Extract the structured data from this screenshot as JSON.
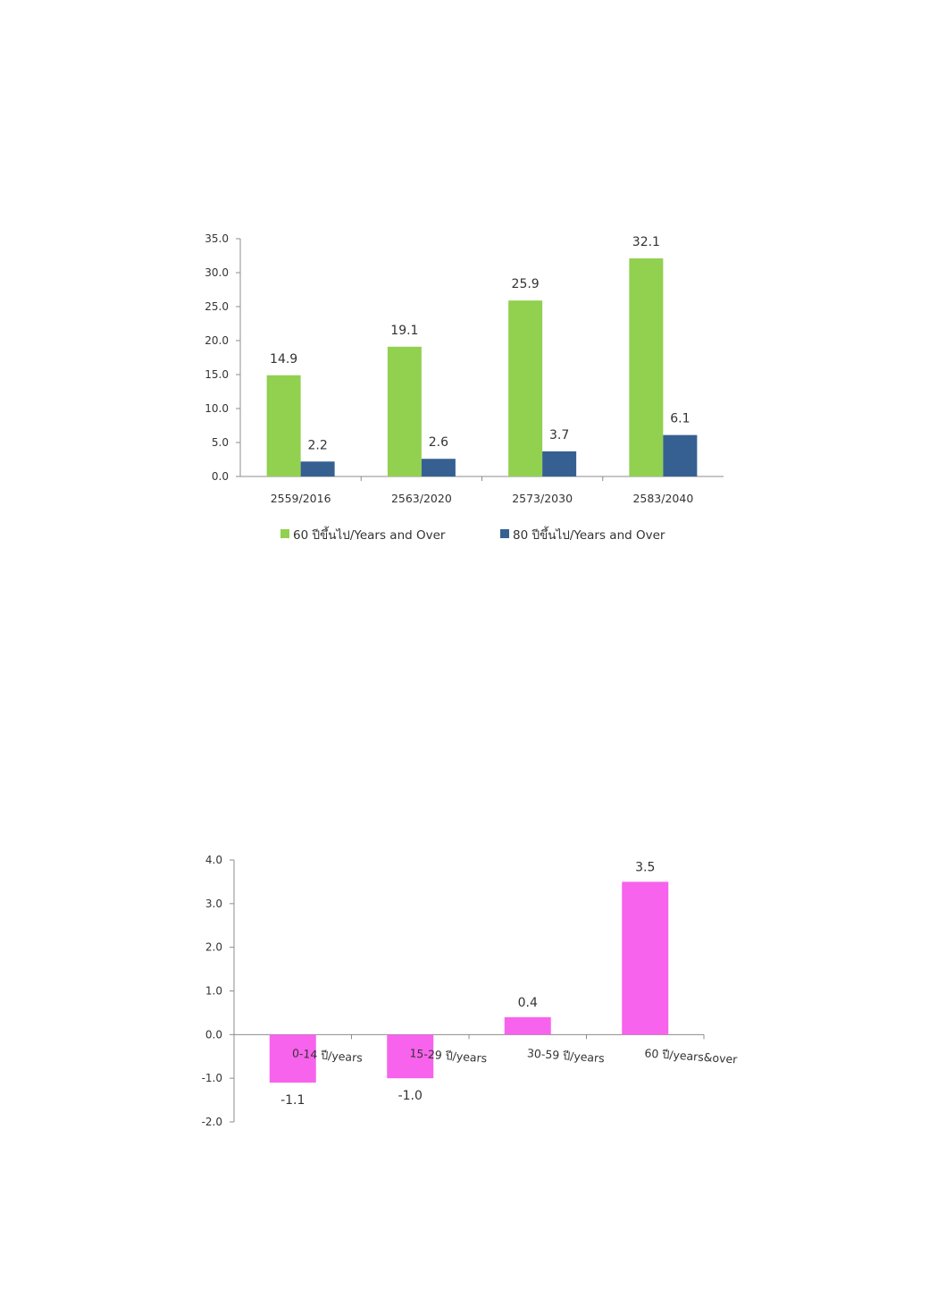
{
  "chart_data": [
    {
      "type": "bar",
      "categories": [
        "2559/2016",
        "2563/2020",
        "2573/2030",
        "2583/2040"
      ],
      "series": [
        {
          "name": "60 ปีขึ้นไป/Years and Over",
          "values": [
            14.9,
            19.1,
            25.9,
            32.1
          ],
          "color": "#92d050"
        },
        {
          "name": "80 ปีขึ้นไป/Years and Over",
          "values": [
            2.2,
            2.6,
            3.7,
            6.1
          ],
          "color": "#366092"
        }
      ],
      "data_labels": [
        [
          "14.9",
          "19.1",
          "25.9",
          "32.1"
        ],
        [
          "2.2",
          "2.6",
          "3.7",
          "6.1"
        ]
      ],
      "yticks": [
        "0.0",
        "5.0",
        "10.0",
        "15.0",
        "20.0",
        "25.0",
        "30.0",
        "35.0"
      ],
      "ylim": [
        0,
        35
      ],
      "legend_position": "bottom",
      "grid": false
    },
    {
      "type": "bar",
      "categories": [
        "0-14 ปี/years",
        "15-29 ปี/years",
        "30-59 ปี/years",
        "60 ปี/years&over"
      ],
      "values": [
        -1.1,
        -1.0,
        0.4,
        3.5
      ],
      "data_labels": [
        "-1.1",
        "-1.0",
        "0.4",
        "3.5"
      ],
      "color": "#f763ec",
      "yticks": [
        "-2.0",
        "-1.0",
        "0.0",
        "1.0",
        "2.0",
        "3.0",
        "4.0"
      ],
      "ylim": [
        -2,
        4
      ],
      "grid": false
    }
  ]
}
